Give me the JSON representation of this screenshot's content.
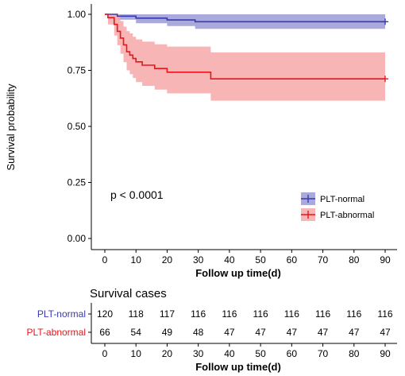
{
  "chart_data": [
    {
      "type": "line",
      "subtype": "kaplan-meier",
      "title": "",
      "xlabel": "Follow up time(d)",
      "ylabel": "Survival probability",
      "xlim": [
        0,
        90
      ],
      "ylim": [
        0,
        1
      ],
      "x_ticks": [
        "0",
        "10",
        "20",
        "30",
        "40",
        "50",
        "60",
        "70",
        "80",
        "90"
      ],
      "y_ticks": [
        "0.00",
        "0.25",
        "0.50",
        "0.75",
        "1.00"
      ],
      "annotation": "p < 0.0001",
      "legend_position": "bottom-right",
      "grid": false,
      "series": [
        {
          "name": "PLT-normal",
          "color": "#3a3ab0",
          "band_color": "#8c8ccf",
          "step_x": [
            0,
            4,
            10,
            20,
            29,
            90
          ],
          "step_y": [
            1.0,
            0.992,
            0.983,
            0.975,
            0.967,
            0.967
          ],
          "lower": [
            1.0,
            0.976,
            0.96,
            0.948,
            0.935,
            0.935
          ],
          "upper": [
            1.0,
            1.0,
            1.0,
            1.0,
            1.0,
            1.0
          ]
        },
        {
          "name": "PLT-abnormal",
          "color": "#e8161b",
          "band_color": "#f7a8a8",
          "step_x": [
            0,
            1,
            3,
            4,
            5,
            6,
            7,
            8,
            9,
            10,
            12,
            16,
            20,
            34,
            90
          ],
          "step_y": [
            1.0,
            0.985,
            0.955,
            0.924,
            0.894,
            0.864,
            0.833,
            0.818,
            0.803,
            0.788,
            0.773,
            0.758,
            0.742,
            0.712,
            0.712
          ],
          "lower": [
            1.0,
            0.955,
            0.905,
            0.862,
            0.824,
            0.786,
            0.75,
            0.733,
            0.716,
            0.698,
            0.681,
            0.664,
            0.647,
            0.615,
            0.615
          ],
          "upper": [
            1.0,
            1.0,
            1.0,
            1.0,
            0.97,
            0.945,
            0.925,
            0.915,
            0.9,
            0.888,
            0.878,
            0.866,
            0.856,
            0.83,
            0.83
          ]
        }
      ]
    },
    {
      "type": "table",
      "title": "Survival cases",
      "xlabel": "Follow up time(d)",
      "x_ticks": [
        "0",
        "10",
        "20",
        "30",
        "40",
        "50",
        "60",
        "70",
        "80",
        "90"
      ],
      "rows": [
        {
          "name": "PLT-normal",
          "color": "#3a3ab0",
          "values": [
            120,
            118,
            117,
            116,
            116,
            116,
            116,
            116,
            116,
            116
          ]
        },
        {
          "name": "PLT-abnormal",
          "color": "#e8161b",
          "values": [
            66,
            54,
            49,
            48,
            47,
            47,
            47,
            47,
            47,
            47
          ]
        }
      ]
    }
  ]
}
